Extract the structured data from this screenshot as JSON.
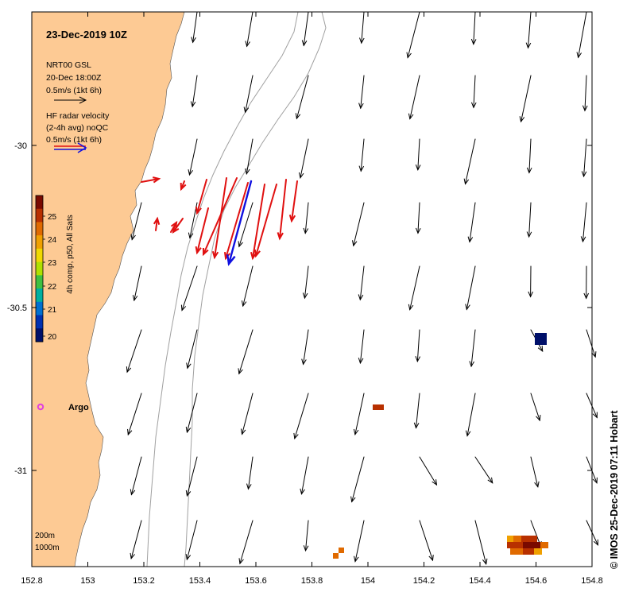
{
  "map": {
    "title": "23-Dec-2019 10Z",
    "model": {
      "label": "NRT00 GSL",
      "time": "20-Dec 18:00Z",
      "scale_label": "0.5m/s (1kt 6h)"
    },
    "radar": {
      "line1": "HF radar velocity",
      "line2": "(2-4h avg) noQC",
      "scale_label": "0.5m/s (1kt 6h)"
    },
    "colorbar": {
      "title": "4h comp, p50, All Sats",
      "ticks": [
        "25",
        "24",
        "23",
        "22",
        "21",
        "20"
      ],
      "colors": [
        "#7a0a00",
        "#b83000",
        "#e06a00",
        "#f0a000",
        "#f0d800",
        "#b0e000",
        "#40c040",
        "#00b0a0",
        "#0070d0",
        "#0030b0",
        "#00106a"
      ]
    },
    "argo_label": "Argo",
    "depth_labels": [
      "200m",
      "1000m"
    ],
    "x_ticks": [
      "152.8",
      "153",
      "153.2",
      "153.4",
      "153.6",
      "153.8",
      "154",
      "154.2",
      "154.4",
      "154.6",
      "154.8"
    ],
    "y_ticks": [
      "-30",
      "-30.5",
      "-31"
    ],
    "credit": "© IMOS 25-Dec-2019 07:11 Hobart",
    "colors": {
      "land": "#fdca94",
      "model_arrow": "#000000",
      "radar_red": "#e01010",
      "radar_blue": "#1010e0",
      "argo": "#e040e0",
      "isobath": "#a0a0a0"
    }
  }
}
